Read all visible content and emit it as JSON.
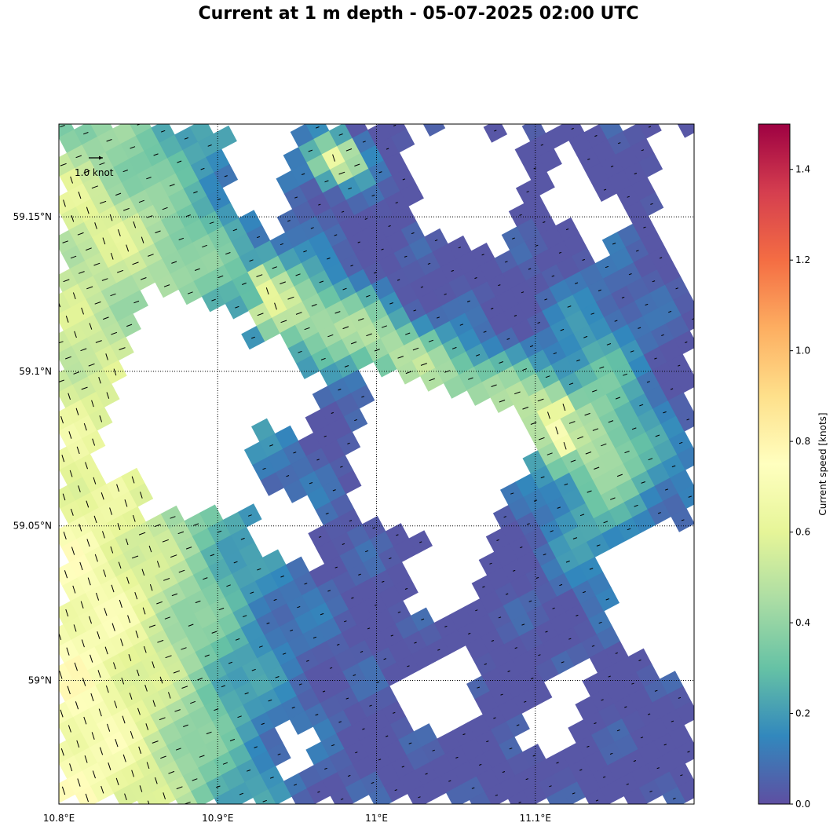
{
  "title": "Current at 1 m depth - 05-07-2025 02:00 UTC",
  "map": {
    "lon_range": [
      10.8,
      11.2
    ],
    "lat_range": [
      58.96,
      59.18
    ],
    "lon_ticks": [
      {
        "value": 10.8,
        "label": "10.8°E"
      },
      {
        "value": 10.9,
        "label": "10.9°E"
      },
      {
        "value": 11.0,
        "label": "11°E"
      },
      {
        "value": 11.1,
        "label": "11.1°E"
      }
    ],
    "lat_ticks": [
      {
        "value": 59.15,
        "label": "59.15°N"
      },
      {
        "value": 59.1,
        "label": "59.1°N"
      },
      {
        "value": 59.05,
        "label": "59.05°N"
      },
      {
        "value": 59.0,
        "label": "59°N"
      }
    ],
    "gridlines": "dotted",
    "reference_arrow": {
      "label": "1.0 knot",
      "speed_knots": 1.0,
      "placement": "top-left"
    }
  },
  "colorbar": {
    "label": "Current speed [knots]",
    "min": 0.0,
    "max": 1.5,
    "ticks": [
      "0.0",
      "0.2",
      "0.4",
      "0.6",
      "0.8",
      "1.0",
      "1.2",
      "1.4"
    ],
    "colormap": "Spectral_r",
    "stops": [
      "#5e4fa2",
      "#3288bd",
      "#66c2a5",
      "#abdda4",
      "#e6f598",
      "#ffffbf",
      "#fee08b",
      "#fdae61",
      "#f46d43",
      "#d53e4f",
      "#9e0142"
    ]
  }
}
